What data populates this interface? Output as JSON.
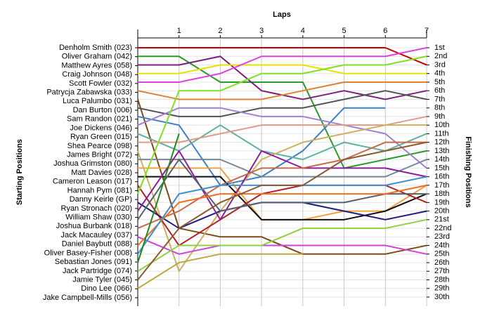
{
  "chart_data": {
    "type": "bump",
    "title": "Laps",
    "y_label": "Starting Positions",
    "y2_label": "Finishing Positions",
    "x": [
      0,
      1,
      2,
      3,
      4,
      5,
      6,
      7
    ],
    "xlim": [
      0,
      7
    ],
    "xticks": [
      1,
      2,
      3,
      4,
      5,
      6,
      7
    ],
    "ylim": [
      1,
      30
    ],
    "grid": true,
    "finish_labels": [
      "1st",
      "2nd",
      "3rd",
      "4th",
      "5th",
      "6th",
      "7th",
      "8th",
      "9th",
      "10th",
      "11th",
      "12th",
      "13th",
      "14th",
      "15th",
      "16th",
      "17th",
      "18th",
      "19th",
      "20th",
      "21st",
      "22nd",
      "23rd",
      "24th",
      "25th",
      "26th",
      "27th",
      "28th",
      "29th",
      "30th"
    ],
    "series": [
      {
        "name": "Denholm Smith (023)",
        "color": "#c00000",
        "values": [
          1,
          1,
          1,
          1,
          1,
          1,
          1,
          3
        ]
      },
      {
        "name": "Oliver Graham (042)",
        "color": "#2a9a2a",
        "values": [
          2,
          2,
          5,
          5,
          5,
          15,
          14,
          13
        ]
      },
      {
        "name": "Matthew Ayres (058)",
        "color": "#7b1f7b",
        "values": [
          3,
          3,
          2,
          6,
          7,
          6,
          7,
          6
        ]
      },
      {
        "name": "Craig Johnson (048)",
        "color": "#e8e000",
        "values": [
          4,
          4,
          3,
          3,
          3,
          4,
          4,
          4
        ]
      },
      {
        "name": "Scott Fowler (032)",
        "color": "#e040e0",
        "values": [
          5,
          5,
          4,
          2,
          2,
          2,
          2,
          1
        ]
      },
      {
        "name": "Patrycja Zabawska (033)",
        "color": "#e08030",
        "values": [
          6,
          7,
          7,
          7,
          6,
          5,
          5,
          5
        ]
      },
      {
        "name": "Luca Palumbo (031)",
        "color": "#7a4a1a",
        "values": [
          7,
          22,
          23,
          23,
          25,
          25,
          25,
          24
        ]
      },
      {
        "name": "Dan Burton (006)",
        "color": "#505050",
        "values": [
          8,
          9,
          9,
          8,
          8,
          7,
          6,
          7
        ]
      },
      {
        "name": "Sam Randon (021)",
        "color": "#3a80c8",
        "values": [
          9,
          10,
          17,
          16,
          13,
          8,
          8,
          null
        ]
      },
      {
        "name": "Joe Dickens (046)",
        "color": "#a080d0",
        "values": [
          10,
          8,
          8,
          9,
          9,
          10,
          11,
          15
        ]
      },
      {
        "name": "Ryan Green (015)",
        "color": "#60b0a0",
        "values": [
          11,
          13,
          10,
          13,
          14,
          12,
          13,
          11
        ]
      },
      {
        "name": "Shea Pearce (098)",
        "color": "#e09a88",
        "values": [
          12,
          12,
          11,
          10,
          10,
          10,
          10,
          9
        ]
      },
      {
        "name": "James Bright (072)",
        "color": "#d0b060",
        "values": [
          13,
          27,
          20,
          14,
          12,
          11,
          10,
          10
        ]
      },
      {
        "name": "Joshua Grimston (080)",
        "color": "#708898",
        "values": [
          14,
          14,
          14,
          16,
          16,
          16,
          16,
          14
        ]
      },
      {
        "name": "Matt Davies (028)",
        "color": "#f0a040",
        "values": [
          15,
          15,
          15,
          21,
          21,
          20,
          20,
          17
        ]
      },
      {
        "name": "Cameron Leason (017)",
        "color": "#101010",
        "values": [
          16,
          16,
          16,
          21,
          21,
          21,
          20,
          18
        ]
      },
      {
        "name": "Hannah Pym (081)",
        "color": "#b02020",
        "values": [
          17,
          24,
          21,
          18,
          17,
          17,
          17,
          19
        ]
      },
      {
        "name": "Danny Keirle (GP)",
        "color": "#80e020",
        "values": [
          18,
          6,
          6,
          4,
          4,
          3,
          3,
          2
        ]
      },
      {
        "name": "Ryan Stronach (020)",
        "color": "#1e1e7a",
        "values": [
          19,
          22,
          20,
          19,
          19,
          20,
          21,
          20
        ]
      },
      {
        "name": "William Shaw (030)",
        "color": "#8a1e9a",
        "values": [
          20,
          13,
          21,
          13,
          15,
          15,
          15,
          16
        ]
      },
      {
        "name": "Joshua Burbank (018)",
        "color": "#556070",
        "values": [
          21,
          14,
          20,
          19,
          19,
          19,
          18,
          18
        ]
      },
      {
        "name": "Jack Macauley (037)",
        "color": "#c86a4a",
        "values": [
          22,
          20,
          17,
          15,
          15,
          14,
          12,
          12
        ]
      },
      {
        "name": "Daniel Baybutt (088)",
        "color": "#d040d8",
        "values": [
          23,
          25,
          24,
          24,
          24,
          24,
          24,
          25
        ]
      },
      {
        "name": "Oliver Basey-Fisher (008)",
        "color": "#f07020",
        "values": [
          24,
          19,
          18,
          18,
          18,
          18,
          18,
          17
        ]
      },
      {
        "name": "Sebastian Jones (091)",
        "color": "#4090d0",
        "values": [
          25,
          18,
          17,
          17,
          17,
          17,
          17,
          16
        ]
      },
      {
        "name": "Jack Partridge (074)",
        "color": "#1e8a1e",
        "values": [
          26,
          11,
          null,
          null,
          null,
          null,
          null,
          null
        ]
      },
      {
        "name": "Jamie Tyler (045)",
        "color": "#90d040",
        "values": [
          27,
          24,
          24,
          24,
          22,
          22,
          22,
          21
        ]
      },
      {
        "name": "Dino Lee (066)",
        "color": "#8a5a30",
        "values": [
          28,
          22,
          19,
          17,
          17,
          14,
          13,
          12
        ]
      },
      {
        "name": "Jake Campbell-Mills (056)",
        "color": "#c0a840",
        "values": [
          29,
          26,
          25,
          25,
          25,
          null,
          null,
          null
        ]
      }
    ]
  }
}
